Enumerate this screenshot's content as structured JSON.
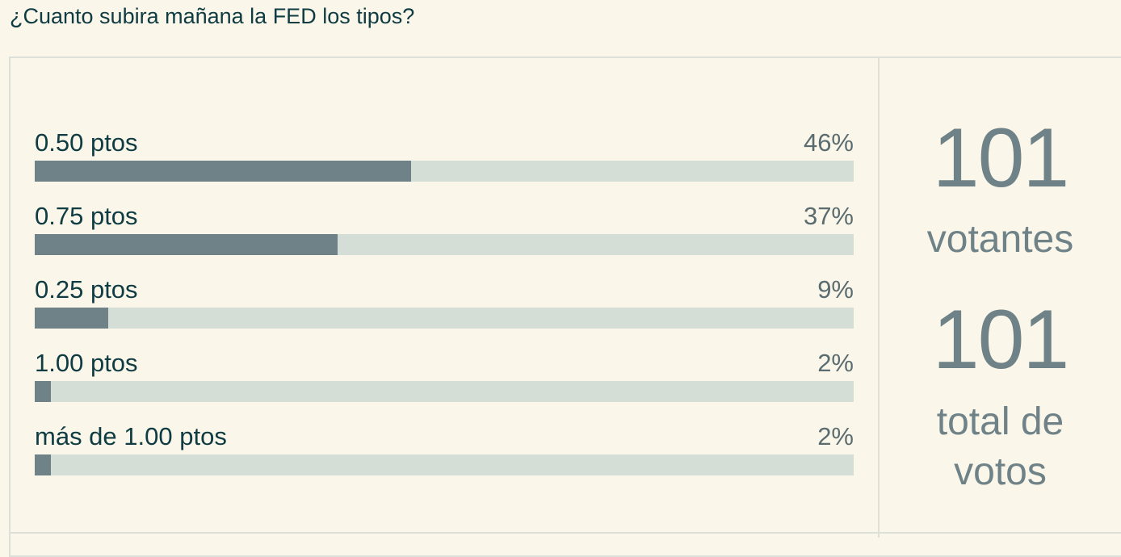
{
  "poll": {
    "question": "¿Cuanto subira mañana la FED los tipos?",
    "options": [
      {
        "label": "0.50 ptos",
        "percent_label": "46%",
        "percent": 46
      },
      {
        "label": "0.75 ptos",
        "percent_label": "37%",
        "percent": 37
      },
      {
        "label": "0.25 ptos",
        "percent_label": "9%",
        "percent": 9
      },
      {
        "label": "1.00 ptos",
        "percent_label": "2%",
        "percent": 2
      },
      {
        "label": "más de 1.00 ptos",
        "percent_label": "2%",
        "percent": 2
      }
    ]
  },
  "stats": {
    "voters_count": "101",
    "voters_label": "votantes",
    "votes_count": "101",
    "votes_label_line1": "total de",
    "votes_label_line2": "votos"
  },
  "colors": {
    "background": "#faf6e9",
    "bar_fill": "#6f8287",
    "bar_track": "#d5ddd7",
    "border": "#dde0d8",
    "text_dark": "#0f3b42",
    "stat_text": "#6f8287"
  }
}
